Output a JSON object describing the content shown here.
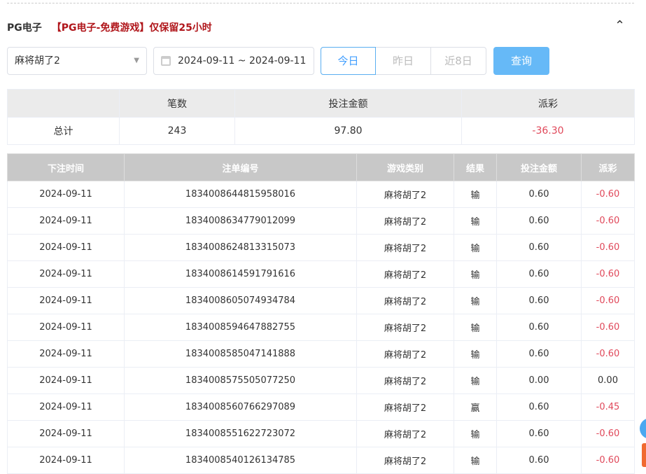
{
  "header": {
    "title": "PG电子",
    "note": "【PG电子-免费游戏】仅保留25小时"
  },
  "filters": {
    "game": "麻将胡了2",
    "date_range": "2024-09-11 ~ 2024-09-11",
    "quick": [
      "今日",
      "昨日",
      "近8日"
    ],
    "active_quick": "今日",
    "query_label": "查询"
  },
  "summary": {
    "headers": [
      "",
      "笔数",
      "投注金额",
      "派彩"
    ],
    "row": [
      "总计",
      "243",
      "97.80",
      "-36.30"
    ]
  },
  "records": {
    "headers": [
      "下注时间",
      "注单编号",
      "游戏类别",
      "结果",
      "投注金额",
      "派彩"
    ],
    "rows": [
      [
        "2024-09-11",
        "1834008644815958016",
        "麻将胡了2",
        "输",
        "0.60",
        "-0.60"
      ],
      [
        "2024-09-11",
        "1834008634779012099",
        "麻将胡了2",
        "输",
        "0.60",
        "-0.60"
      ],
      [
        "2024-09-11",
        "1834008624813315073",
        "麻将胡了2",
        "输",
        "0.60",
        "-0.60"
      ],
      [
        "2024-09-11",
        "1834008614591791616",
        "麻将胡了2",
        "输",
        "0.60",
        "-0.60"
      ],
      [
        "2024-09-11",
        "1834008605074934784",
        "麻将胡了2",
        "输",
        "0.60",
        "-0.60"
      ],
      [
        "2024-09-11",
        "1834008594647882755",
        "麻将胡了2",
        "输",
        "0.60",
        "-0.60"
      ],
      [
        "2024-09-11",
        "1834008585047141888",
        "麻将胡了2",
        "输",
        "0.60",
        "-0.60"
      ],
      [
        "2024-09-11",
        "1834008575505077250",
        "麻将胡了2",
        "输",
        "0.00",
        "0.00"
      ],
      [
        "2024-09-11",
        "1834008560766297089",
        "麻将胡了2",
        "赢",
        "0.60",
        "-0.45"
      ],
      [
        "2024-09-11",
        "1834008551622723072",
        "麻将胡了2",
        "输",
        "0.60",
        "-0.60"
      ],
      [
        "2024-09-11",
        "1834008540126134785",
        "麻将胡了2",
        "输",
        "0.60",
        "-0.60"
      ]
    ]
  },
  "colors": {
    "accent": "#409eff",
    "negative": "#e0485a",
    "note": "#b0161b"
  }
}
